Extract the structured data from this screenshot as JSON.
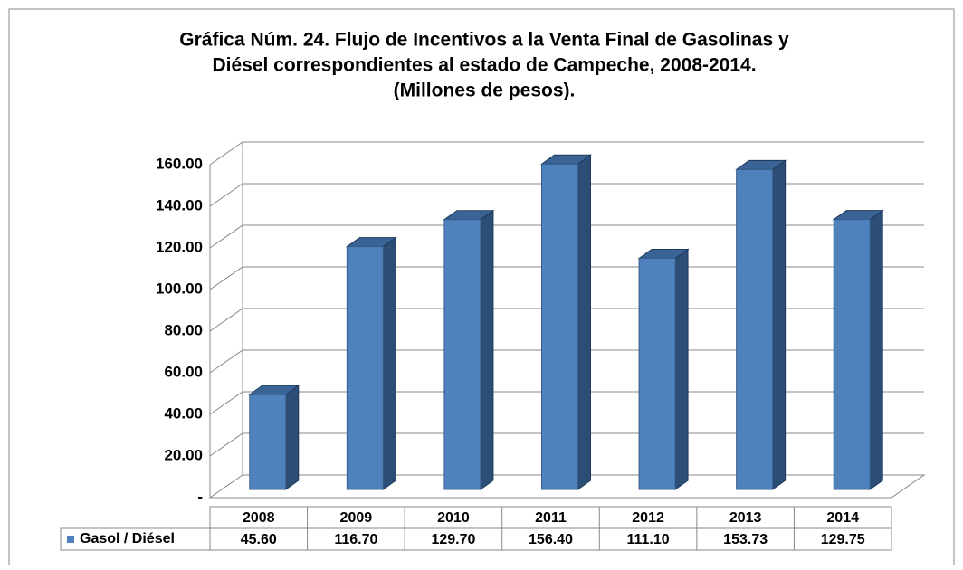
{
  "chart_data": {
    "type": "bar",
    "title": [
      "Gráfica Núm. 24. Flujo de Incentivos a la Venta Final de Gasolinas y",
      "Diésel correspondientes al estado de Campeche, 2008-2014.",
      "(Millones de pesos)."
    ],
    "categories": [
      "2008",
      "2009",
      "2010",
      "2011",
      "2012",
      "2013",
      "2014"
    ],
    "series": [
      {
        "name": "Gasol / Diésel",
        "color": "#4f81bd",
        "values": [
          45.6,
          116.7,
          129.7,
          156.4,
          111.1,
          153.73,
          129.75
        ],
        "value_labels": [
          "45.60",
          "116.70",
          "129.70",
          "156.40",
          "111.10",
          "153.73",
          "129.75"
        ]
      }
    ],
    "ylim": [
      0,
      160
    ],
    "yticks": [
      {
        "value": 0,
        "label": "-"
      },
      {
        "value": 20,
        "label": "20.00"
      },
      {
        "value": 40,
        "label": "40.00"
      },
      {
        "value": 60,
        "label": "60.00"
      },
      {
        "value": 80,
        "label": "80.00"
      },
      {
        "value": 100,
        "label": "100.00"
      },
      {
        "value": 120,
        "label": "120.00"
      },
      {
        "value": 140,
        "label": "140.00"
      },
      {
        "value": 160,
        "label": "160.00"
      }
    ],
    "grid": true
  }
}
